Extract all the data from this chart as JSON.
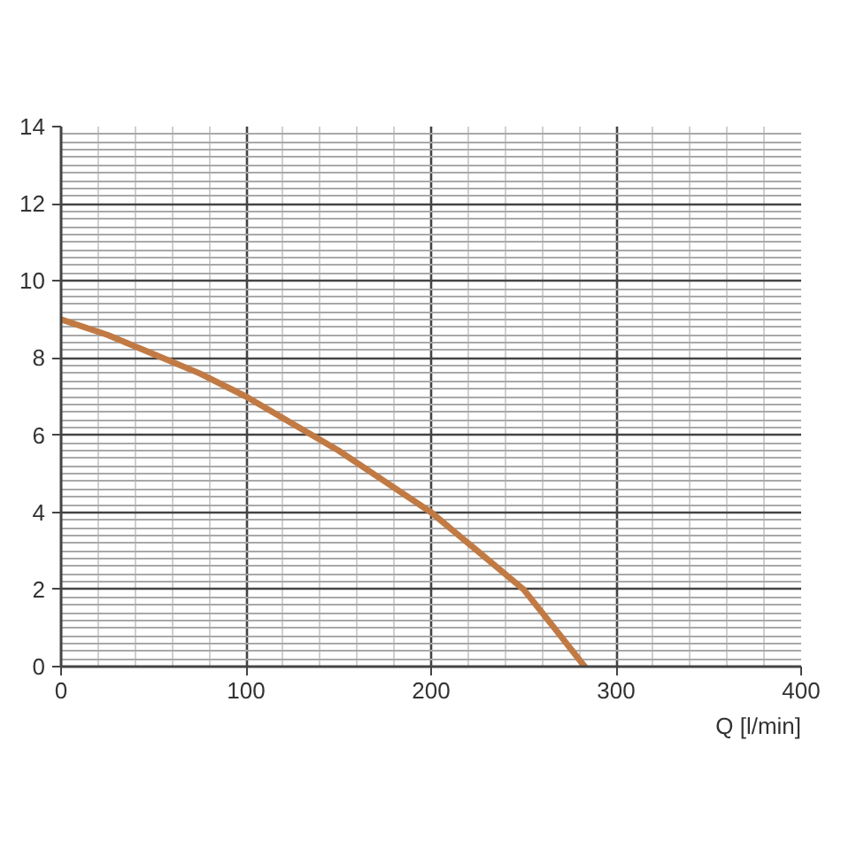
{
  "chart_data": {
    "type": "line",
    "xlabel": "Q [l/min]",
    "x": [
      0,
      25,
      50,
      75,
      100,
      125,
      150,
      175,
      200,
      225,
      250,
      265,
      283
    ],
    "series": [
      {
        "color": "#c27a44",
        "values": [
          9,
          8.6,
          8.1,
          7.6,
          7.0,
          6.3,
          5.6,
          4.8,
          4.0,
          3.0,
          2.0,
          1.1,
          0
        ]
      }
    ],
    "xlim": [
      0,
      400
    ],
    "ylim": [
      0,
      14
    ],
    "xticks": [
      0,
      {
        "value": 20,
        "label": null
      },
      {
        "value": 40,
        "label": null
      },
      {
        "value": 60,
        "label": null
      },
      {
        "value": 80,
        "label": null
      },
      100,
      {
        "value": 120,
        "label": null
      },
      {
        "value": 140,
        "label": null
      },
      {
        "value": 160,
        "label": null
      },
      {
        "value": 180,
        "label": null
      },
      200,
      {
        "value": 220,
        "label": null
      },
      {
        "value": 240,
        "label": null
      },
      {
        "value": 260,
        "label": null
      },
      {
        "value": 280,
        "label": null
      },
      300,
      {
        "value": 320,
        "label": null
      },
      {
        "value": 340,
        "label": null
      },
      {
        "value": 360,
        "label": null
      },
      {
        "value": 380,
        "label": null
      },
      400
    ],
    "yticks": [
      0,
      {
        "value": 0.2,
        "label": null
      },
      {
        "value": 0.4,
        "label": null
      },
      {
        "value": 0.6,
        "label": null
      },
      {
        "value": 0.8,
        "label": null
      },
      {
        "value": 1.0,
        "label": null
      },
      {
        "value": 1.2,
        "label": null
      },
      {
        "value": 1.4,
        "label": null
      },
      {
        "value": 1.6,
        "label": null
      },
      {
        "value": 1.8,
        "label": null
      },
      2,
      {
        "value": 2.2,
        "label": null
      },
      {
        "value": 2.4,
        "label": null
      },
      {
        "value": 2.6,
        "label": null
      },
      {
        "value": 2.8,
        "label": null
      },
      {
        "value": 3.0,
        "label": null
      },
      {
        "value": 3.2,
        "label": null
      },
      {
        "value": 3.4,
        "label": null
      },
      {
        "value": 3.6,
        "label": null
      },
      {
        "value": 3.8,
        "label": null
      },
      4,
      {
        "value": 4.2,
        "label": null
      },
      {
        "value": 4.4,
        "label": null
      },
      {
        "value": 4.6,
        "label": null
      },
      {
        "value": 4.8,
        "label": null
      },
      {
        "value": 5.0,
        "label": null
      },
      {
        "value": 5.2,
        "label": null
      },
      {
        "value": 5.4,
        "label": null
      },
      {
        "value": 5.6,
        "label": null
      },
      {
        "value": 5.8,
        "label": null
      },
      6,
      {
        "value": 6.2,
        "label": null
      },
      {
        "value": 6.4,
        "label": null
      },
      {
        "value": 6.6,
        "label": null
      },
      {
        "value": 6.8,
        "label": null
      },
      {
        "value": 7.0,
        "label": null
      },
      {
        "value": 7.2,
        "label": null
      },
      {
        "value": 7.4,
        "label": null
      },
      {
        "value": 7.6,
        "label": null
      },
      {
        "value": 7.8,
        "label": null
      },
      8,
      {
        "value": 8.2,
        "label": null
      },
      {
        "value": 8.4,
        "label": null
      },
      {
        "value": 8.6,
        "label": null
      },
      {
        "value": 8.8,
        "label": null
      },
      {
        "value": 9.0,
        "label": null
      },
      {
        "value": 9.2,
        "label": null
      },
      {
        "value": 9.4,
        "label": null
      },
      {
        "value": 9.6,
        "label": null
      },
      {
        "value": 9.8,
        "label": null
      },
      10,
      {
        "value": 10.2,
        "label": null
      },
      {
        "value": 10.4,
        "label": null
      },
      {
        "value": 10.6,
        "label": null
      },
      {
        "value": 10.8,
        "label": null
      },
      {
        "value": 11.0,
        "label": null
      },
      {
        "value": 11.2,
        "label": null
      },
      {
        "value": 11.4,
        "label": null
      },
      {
        "value": 11.6,
        "label": null
      },
      {
        "value": 11.8,
        "label": null
      },
      12,
      {
        "value": 12.2,
        "label": null
      },
      {
        "value": 12.4,
        "label": null
      },
      {
        "value": 12.6,
        "label": null
      },
      {
        "value": 12.8,
        "label": null
      },
      {
        "value": 13.0,
        "label": null
      },
      {
        "value": 13.2,
        "label": null
      },
      {
        "value": 13.4,
        "label": null
      },
      {
        "value": 13.6,
        "label": null
      },
      {
        "value": 13.8,
        "label": null
      },
      14
    ],
    "grid": true,
    "line_style": "solid"
  }
}
